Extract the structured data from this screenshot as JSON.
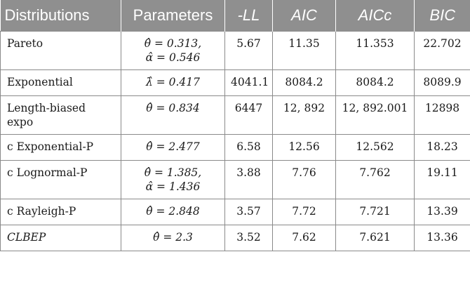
{
  "headers": [
    "Distributions",
    "Parameters",
    "-LL",
    "AIC",
    "AICc",
    "BIC"
  ],
  "rows": [
    {
      "name": "Pareto",
      "params": [
        "θ̂ = 0.313,",
        "α̂ = 0.546"
      ],
      "ll": "5.67",
      "aic": "11.35",
      "aicc": "11.353",
      "bic": "22.702"
    },
    {
      "name": "Exponential",
      "params": [
        "λ̂ = 0.417"
      ],
      "ll": "4041.1",
      "aic": "8084.2",
      "aicc": "8084.2",
      "bic": "8089.9"
    },
    {
      "name": "Length-biased expo",
      "params": [
        "θ̂ = 0.834"
      ],
      "ll": "6447",
      "aic": "12, 892",
      "aicc": "12, 892.001",
      "bic": "12898"
    },
    {
      "name": "c Exponential-P",
      "params": [
        "θ̂ = 2.477"
      ],
      "ll": "6.58",
      "aic": "12.56",
      "aicc": "12.562",
      "bic": "18.23"
    },
    {
      "name": "c Lognormal-P",
      "params": [
        "θ̂ = 1.385,",
        "α̂ = 1.436"
      ],
      "ll": "3.88",
      "aic": "7.76",
      "aicc": "7.762",
      "bic": "19.11"
    },
    {
      "name": "c Rayleigh-P",
      "params": [
        "θ̂ = 2.848"
      ],
      "ll": "3.57",
      "aic": "7.72",
      "aicc": "7.721",
      "bic": "13.39"
    },
    {
      "name": "CLBEP",
      "params": [
        "θ̂ = 2.3"
      ],
      "ll": "3.52",
      "aic": "7.62",
      "aicc": "7.621",
      "bic": "13.36"
    }
  ]
}
